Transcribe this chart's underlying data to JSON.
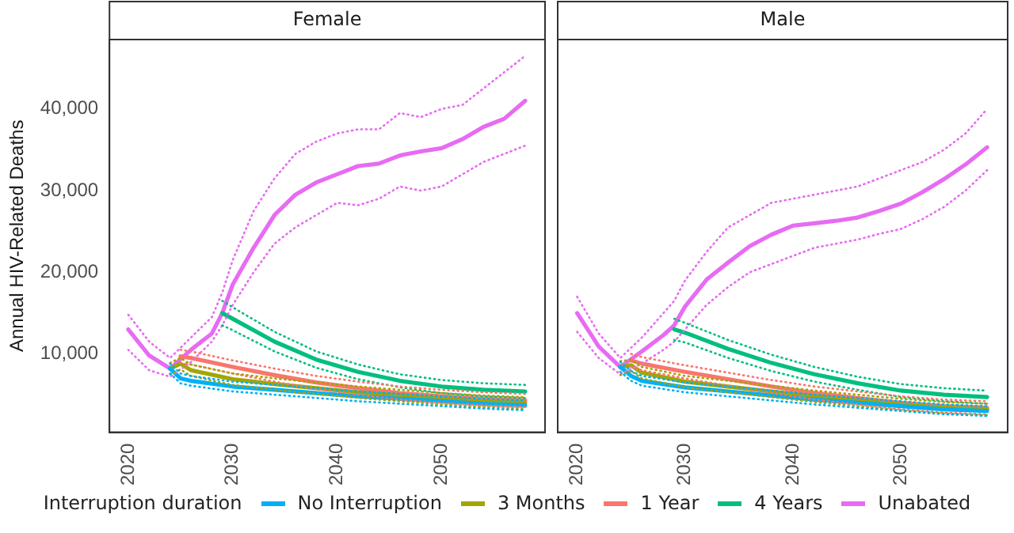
{
  "chart_data": [
    {
      "type": "line",
      "title": "Female",
      "ylabel": "Annual HIV-Related Deaths",
      "legend_title": "Interruption duration",
      "legend": "bottom",
      "marker": "none",
      "line_style": "solid",
      "xlim": [
        2018.2,
        2059.9
      ],
      "xticks": [
        2020,
        2030,
        2040,
        2050
      ],
      "ylim": [
        400,
        48500
      ],
      "yticks": [
        {
          "value": 10000,
          "label": "10,000"
        },
        {
          "value": 20000,
          "label": "20,000"
        },
        {
          "value": 30000,
          "label": "30,000"
        },
        {
          "value": 40000,
          "label": "40,000"
        }
      ],
      "series": [
        {
          "name": "No Interruption",
          "color": "#00b0f6",
          "x": [
            2024,
            2025,
            2026,
            2030,
            2034,
            2038,
            2042,
            2046,
            2050,
            2054,
            2058
          ],
          "values": [
            8200,
            7000,
            6700,
            6000,
            5600,
            5200,
            4800,
            4500,
            4200,
            3900,
            3700
          ]
        },
        {
          "name": "3 Months",
          "color": "#a3a500",
          "x": [
            2024,
            2025,
            2026,
            2030,
            2034,
            2038,
            2042,
            2046,
            2050,
            2054,
            2058
          ],
          "values": [
            8200,
            8800,
            8000,
            6900,
            6300,
            5800,
            5300,
            4900,
            4500,
            4200,
            4000
          ]
        },
        {
          "name": "1 Year",
          "color": "#f8766d",
          "x": [
            2025,
            2026,
            2030,
            2034,
            2038,
            2042,
            2046,
            2050,
            2054,
            2058
          ],
          "values": [
            9700,
            9500,
            8400,
            7400,
            6500,
            5800,
            5200,
            4800,
            4500,
            4300
          ]
        },
        {
          "name": "4 Years",
          "color": "#00bf7d",
          "x": [
            2029,
            2030,
            2034,
            2038,
            2042,
            2046,
            2050,
            2054,
            2058
          ],
          "values": [
            15000,
            14300,
            11500,
            9300,
            7800,
            6700,
            6000,
            5600,
            5400
          ]
        },
        {
          "name": "Unabated",
          "color": "#e76bf3",
          "x": [
            2020,
            2022,
            2024,
            2026,
            2028,
            2029,
            2030,
            2032,
            2034,
            2036,
            2038,
            2040,
            2042,
            2044,
            2046,
            2048,
            2050,
            2052,
            2054,
            2056,
            2058
          ],
          "values": [
            13000,
            9800,
            8200,
            10500,
            12500,
            15000,
            18500,
            23000,
            27000,
            29500,
            31000,
            32000,
            33000,
            33300,
            34300,
            34800,
            35200,
            36300,
            37800,
            38800,
            41000
          ]
        },
        {
          "color": "#00b0f6",
          "line_style": "dotted",
          "x": [
            2024,
            2025,
            2026,
            2030,
            2034,
            2038,
            2042,
            2046,
            2050,
            2054,
            2058
          ],
          "values": [
            7600,
            6400,
            6100,
            5400,
            5000,
            4600,
            4200,
            3900,
            3600,
            3300,
            3100
          ]
        },
        {
          "color": "#00b0f6",
          "line_style": "dotted",
          "x": [
            2024,
            2025,
            2026,
            2030,
            2034,
            2038,
            2042,
            2046,
            2050,
            2054,
            2058
          ],
          "values": [
            8800,
            7600,
            7300,
            6600,
            6200,
            5800,
            5400,
            5100,
            4800,
            4500,
            4300
          ]
        },
        {
          "color": "#a3a500",
          "line_style": "dotted",
          "x": [
            2024,
            2025,
            2026,
            2030,
            2034,
            2038,
            2042,
            2046,
            2050,
            2054,
            2058
          ],
          "values": [
            7500,
            8100,
            7300,
            6200,
            5600,
            5100,
            4600,
            4200,
            3800,
            3500,
            3300
          ]
        },
        {
          "color": "#a3a500",
          "line_style": "dotted",
          "x": [
            2024,
            2025,
            2026,
            2030,
            2034,
            2038,
            2042,
            2046,
            2050,
            2054,
            2058
          ],
          "values": [
            8900,
            9500,
            8700,
            7600,
            7000,
            6500,
            6000,
            5600,
            5200,
            4900,
            4700
          ]
        },
        {
          "color": "#f8766d",
          "line_style": "dotted",
          "x": [
            2025,
            2026,
            2030,
            2034,
            2038,
            2042,
            2046,
            2050,
            2054,
            2058
          ],
          "values": [
            8900,
            8700,
            7600,
            6600,
            5700,
            5000,
            4400,
            4000,
            3700,
            3500
          ]
        },
        {
          "color": "#f8766d",
          "line_style": "dotted",
          "x": [
            2025,
            2026,
            2030,
            2034,
            2038,
            2042,
            2046,
            2050,
            2054,
            2058
          ],
          "values": [
            10500,
            10300,
            9200,
            8200,
            7300,
            6600,
            6000,
            5600,
            5300,
            5100
          ]
        },
        {
          "color": "#00bf7d",
          "line_style": "dotted",
          "x": [
            2029,
            2030,
            2034,
            2038,
            2042,
            2046,
            2050,
            2054,
            2058
          ],
          "values": [
            13500,
            12900,
            10300,
            8300,
            6900,
            5900,
            5200,
            4800,
            4600
          ]
        },
        {
          "color": "#00bf7d",
          "line_style": "dotted",
          "x": [
            2029,
            2030,
            2034,
            2038,
            2042,
            2046,
            2050,
            2054,
            2058
          ],
          "values": [
            16500,
            15700,
            12700,
            10300,
            8700,
            7500,
            6800,
            6400,
            6200
          ]
        },
        {
          "color": "#e76bf3",
          "line_style": "dotted",
          "x": [
            2020,
            2022,
            2024,
            2026,
            2028,
            2029,
            2030,
            2032,
            2034,
            2036,
            2038,
            2040,
            2042,
            2044,
            2046,
            2048,
            2050,
            2052,
            2054,
            2056,
            2058
          ],
          "values": [
            10500,
            8000,
            7200,
            9000,
            11500,
            13500,
            16000,
            20000,
            23500,
            25500,
            27000,
            28500,
            28200,
            29000,
            30500,
            30000,
            30500,
            32000,
            33500,
            34500,
            35500
          ]
        },
        {
          "color": "#e76bf3",
          "line_style": "dotted",
          "x": [
            2020,
            2022,
            2024,
            2026,
            2028,
            2029,
            2030,
            2032,
            2034,
            2036,
            2038,
            2040,
            2042,
            2044,
            2046,
            2048,
            2050,
            2052,
            2054,
            2056,
            2058
          ],
          "values": [
            14800,
            11500,
            9500,
            12000,
            14500,
            17500,
            21500,
            27500,
            31500,
            34500,
            36000,
            37000,
            37500,
            37500,
            39500,
            39000,
            40000,
            40500,
            42500,
            44500,
            46500
          ]
        }
      ]
    },
    {
      "type": "line",
      "title": "Male",
      "marker": "none",
      "line_style": "solid",
      "tick_labels": "x",
      "xlim": [
        2018.2,
        2059.9
      ],
      "xticks": [
        2020,
        2030,
        2040,
        2050
      ],
      "ylim": [
        400,
        48500
      ],
      "series": [
        {
          "color": "#00b0f6",
          "x": [
            2024,
            2025,
            2026,
            2030,
            2034,
            2038,
            2042,
            2046,
            2050,
            2054,
            2058
          ],
          "values": [
            8400,
            7300,
            6700,
            5900,
            5400,
            4900,
            4400,
            4000,
            3600,
            3200,
            3000
          ]
        },
        {
          "color": "#a3a500",
          "x": [
            2024,
            2025,
            2026,
            2030,
            2034,
            2038,
            2042,
            2046,
            2050,
            2054,
            2058
          ],
          "values": [
            8400,
            8600,
            7700,
            6600,
            6000,
            5400,
            4800,
            4300,
            3800,
            3400,
            3200
          ]
        },
        {
          "color": "#f8766d",
          "x": [
            2025,
            2026,
            2030,
            2034,
            2038,
            2042,
            2046,
            2050,
            2054,
            2058
          ],
          "values": [
            9200,
            8800,
            7800,
            6900,
            6000,
            5200,
            4600,
            4000,
            3600,
            3400
          ]
        },
        {
          "color": "#00bf7d",
          "x": [
            2029,
            2030,
            2034,
            2038,
            2042,
            2046,
            2050,
            2054,
            2058
          ],
          "values": [
            13000,
            12600,
            10600,
            8900,
            7500,
            6400,
            5500,
            5000,
            4700
          ]
        },
        {
          "color": "#e76bf3",
          "x": [
            2020,
            2022,
            2024,
            2026,
            2028,
            2029,
            2030,
            2032,
            2034,
            2036,
            2038,
            2040,
            2042,
            2044,
            2046,
            2048,
            2050,
            2052,
            2054,
            2056,
            2058
          ],
          "values": [
            15000,
            10900,
            8400,
            10300,
            12300,
            13500,
            15800,
            19100,
            21200,
            23200,
            24600,
            25700,
            26000,
            26300,
            26700,
            27500,
            28400,
            29800,
            31400,
            33200,
            35300
          ]
        },
        {
          "color": "#00b0f6",
          "line_style": "dotted",
          "x": [
            2024,
            2025,
            2026,
            2030,
            2034,
            2038,
            2042,
            2046,
            2050,
            2054,
            2058
          ],
          "values": [
            7800,
            6700,
            6100,
            5300,
            4800,
            4300,
            3800,
            3400,
            3000,
            2600,
            2400
          ]
        },
        {
          "color": "#00b0f6",
          "line_style": "dotted",
          "x": [
            2024,
            2025,
            2026,
            2030,
            2034,
            2038,
            2042,
            2046,
            2050,
            2054,
            2058
          ],
          "values": [
            9000,
            7900,
            7300,
            6500,
            6000,
            5500,
            5000,
            4600,
            4200,
            3800,
            3600
          ]
        },
        {
          "color": "#a3a500",
          "line_style": "dotted",
          "x": [
            2024,
            2025,
            2026,
            2030,
            2034,
            2038,
            2042,
            2046,
            2050,
            2054,
            2058
          ],
          "values": [
            7400,
            7900,
            7000,
            5900,
            5300,
            4700,
            4100,
            3600,
            3100,
            2700,
            2500
          ]
        },
        {
          "color": "#a3a500",
          "line_style": "dotted",
          "x": [
            2024,
            2025,
            2026,
            2030,
            2034,
            2038,
            2042,
            2046,
            2050,
            2054,
            2058
          ],
          "values": [
            9100,
            9300,
            8400,
            7300,
            6700,
            6100,
            5500,
            5000,
            4500,
            4100,
            3900
          ]
        },
        {
          "color": "#f8766d",
          "line_style": "dotted",
          "x": [
            2025,
            2026,
            2030,
            2034,
            2038,
            2042,
            2046,
            2050,
            2054,
            2058
          ],
          "values": [
            8400,
            8000,
            7000,
            6100,
            5200,
            4400,
            3800,
            3200,
            2800,
            2600
          ]
        },
        {
          "color": "#f8766d",
          "line_style": "dotted",
          "x": [
            2025,
            2026,
            2030,
            2034,
            2038,
            2042,
            2046,
            2050,
            2054,
            2058
          ],
          "values": [
            10000,
            9600,
            8600,
            7700,
            6800,
            6000,
            5400,
            4800,
            4400,
            4200
          ]
        },
        {
          "color": "#00bf7d",
          "line_style": "dotted",
          "x": [
            2029,
            2030,
            2034,
            2038,
            2042,
            2046,
            2050,
            2054,
            2058
          ],
          "values": [
            11700,
            11400,
            9500,
            7900,
            6600,
            5600,
            4700,
            4200,
            3900
          ]
        },
        {
          "color": "#00bf7d",
          "line_style": "dotted",
          "x": [
            2029,
            2030,
            2034,
            2038,
            2042,
            2046,
            2050,
            2054,
            2058
          ],
          "values": [
            14300,
            13800,
            11700,
            9900,
            8400,
            7200,
            6300,
            5800,
            5500
          ]
        },
        {
          "color": "#e76bf3",
          "line_style": "dotted",
          "x": [
            2020,
            2022,
            2024,
            2026,
            2028,
            2029,
            2030,
            2032,
            2034,
            2036,
            2038,
            2040,
            2042,
            2044,
            2046,
            2048,
            2050,
            2052,
            2054,
            2056,
            2058
          ],
          "values": [
            12700,
            9500,
            7500,
            8800,
            10500,
            11500,
            13000,
            16000,
            18200,
            20000,
            21000,
            22000,
            23000,
            23500,
            24000,
            24700,
            25300,
            26500,
            28000,
            30000,
            32500
          ]
        },
        {
          "color": "#e76bf3",
          "line_style": "dotted",
          "x": [
            2020,
            2022,
            2024,
            2026,
            2028,
            2029,
            2030,
            2032,
            2034,
            2036,
            2038,
            2040,
            2042,
            2044,
            2046,
            2048,
            2050,
            2052,
            2054,
            2056,
            2058
          ],
          "values": [
            17000,
            12500,
            9500,
            12000,
            15000,
            16500,
            19000,
            22500,
            25500,
            27000,
            28500,
            29000,
            29500,
            30000,
            30500,
            31500,
            32500,
            33500,
            35000,
            37000,
            40000
          ]
        }
      ]
    }
  ]
}
